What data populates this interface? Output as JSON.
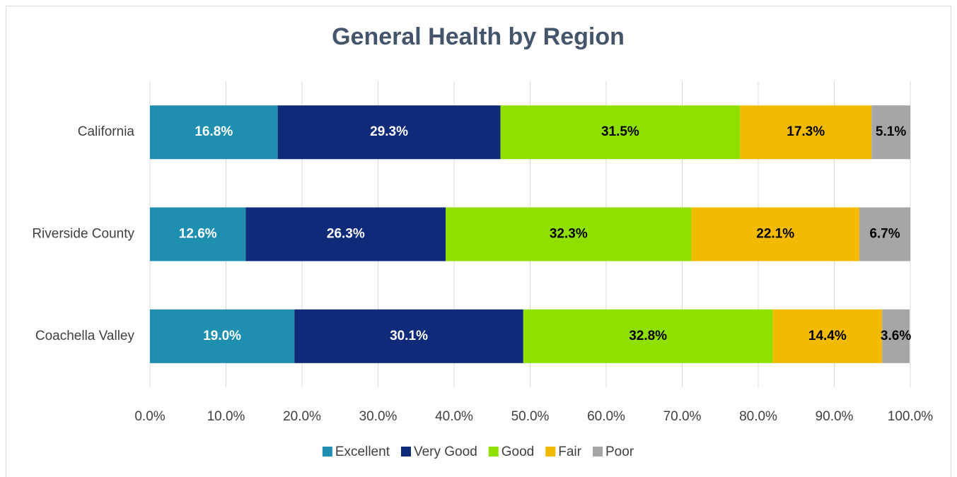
{
  "chart_data": {
    "type": "stacked_bar_horizontal",
    "title": "General Health by Region",
    "categories": [
      "California",
      "Riverside County",
      "Coachella Valley"
    ],
    "series": [
      {
        "name": "Excellent",
        "color": "#1f8fb0",
        "values": [
          16.8,
          12.6,
          19.0
        ],
        "value_labels": [
          "16.8%",
          "12.6%",
          "19.0%"
        ]
      },
      {
        "name": "Very Good",
        "color": "#0e2a78",
        "values": [
          29.3,
          26.3,
          30.1
        ],
        "value_labels": [
          "29.3%",
          "26.3%",
          "30.1%"
        ]
      },
      {
        "name": "Good",
        "color": "#8fe000",
        "values": [
          31.5,
          32.3,
          32.8
        ],
        "value_labels": [
          "31.5%",
          "32.3%",
          "32.8%"
        ]
      },
      {
        "name": "Fair",
        "color": "#f2ba00",
        "values": [
          17.3,
          22.1,
          14.4
        ],
        "value_labels": [
          "17.3%",
          "22.1%",
          "14.4%"
        ]
      },
      {
        "name": "Poor",
        "color": "#a6a6a6",
        "values": [
          5.1,
          6.7,
          3.6
        ],
        "value_labels": [
          "5.1%",
          "6.7%",
          "3.6%"
        ]
      }
    ],
    "xlim": [
      0,
      100
    ],
    "xticks": [
      {
        "value": 0,
        "label": "0.0%"
      },
      {
        "value": 10,
        "label": "10.0%"
      },
      {
        "value": 20,
        "label": "20.0%"
      },
      {
        "value": 30,
        "label": "30.0%"
      },
      {
        "value": 40,
        "label": "40.0%"
      },
      {
        "value": 50,
        "label": "50.0%"
      },
      {
        "value": 60,
        "label": "60.0%"
      },
      {
        "value": 70,
        "label": "70.0%"
      },
      {
        "value": 80,
        "label": "80.0%"
      },
      {
        "value": 90,
        "label": "90.0%"
      },
      {
        "value": 100,
        "label": "100.0%"
      }
    ],
    "grid": true,
    "legend": "bottom"
  }
}
